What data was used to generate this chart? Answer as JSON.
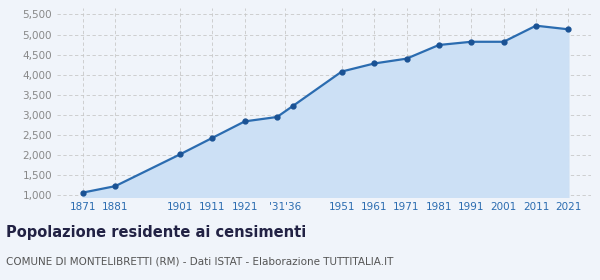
{
  "years": [
    1871,
    1881,
    1901,
    1911,
    1921,
    1931,
    1936,
    1951,
    1961,
    1971,
    1981,
    1991,
    2001,
    2011,
    2021
  ],
  "population": [
    1070,
    1230,
    2020,
    2430,
    2840,
    2950,
    3230,
    4080,
    4280,
    4400,
    4740,
    4820,
    4820,
    5220,
    5130
  ],
  "x_tick_labels": [
    "1871",
    "1881",
    "1901",
    "1911",
    "1921",
    "'31'36",
    "1951",
    "1961",
    "1971",
    "1981",
    "1991",
    "2001",
    "2011",
    "2021"
  ],
  "x_tick_positions": [
    1871,
    1881,
    1901,
    1911,
    1921,
    1933.5,
    1951,
    1961,
    1971,
    1981,
    1991,
    2001,
    2011,
    2021
  ],
  "y_ticks": [
    1000,
    1500,
    2000,
    2500,
    3000,
    3500,
    4000,
    4500,
    5000,
    5500
  ],
  "ylim": [
    950,
    5650
  ],
  "xlim": [
    1863,
    2028
  ],
  "line_color": "#2b6cb0",
  "fill_color": "#cce0f5",
  "marker_color": "#1a5294",
  "grid_color": "#c8c8c8",
  "background_color": "#f0f4fa",
  "title": "Popolazione residente ai censimenti",
  "subtitle": "COMUNE DI MONTELIBRETTI (RM) - Dati ISTAT - Elaborazione TUTTITALIA.IT",
  "title_fontsize": 10.5,
  "subtitle_fontsize": 7.5,
  "title_color": "#222244",
  "subtitle_color": "#555555",
  "axis_label_color": "#2b6cb0",
  "tick_fontsize": 7.5,
  "ytick_color": "#888888"
}
